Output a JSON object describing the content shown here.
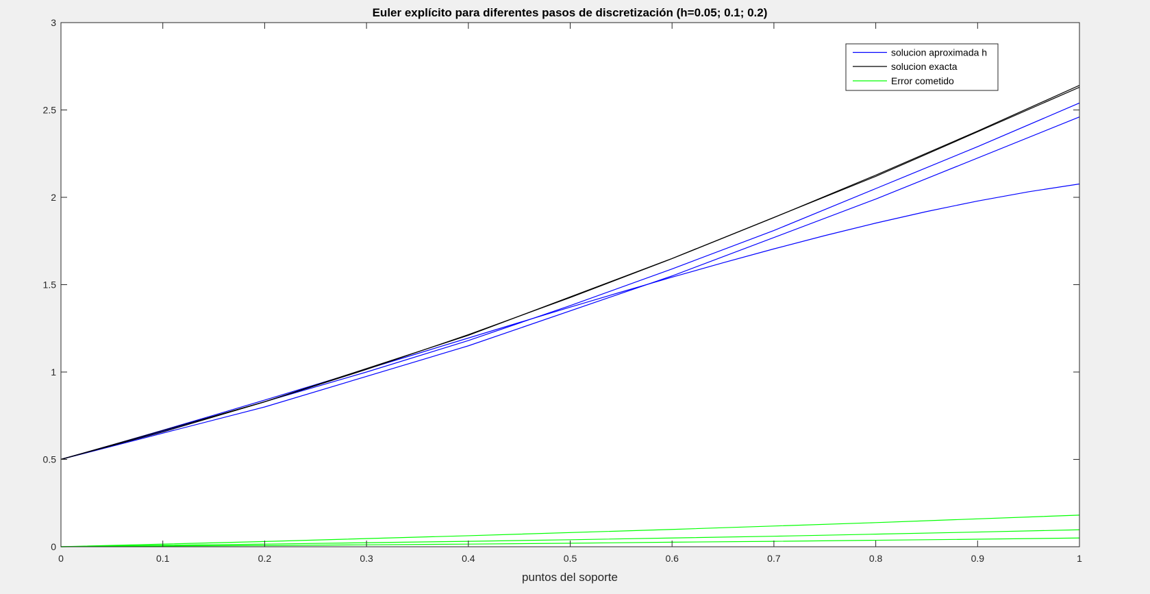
{
  "chart_data": {
    "type": "line",
    "title": "Euler explícito para diferentes pasos de discretización (h=0.05; 0.1; 0.2)",
    "xlabel": "puntos del soporte",
    "ylabel": "",
    "xlim": [
      0,
      1
    ],
    "ylim": [
      0,
      3
    ],
    "xticks": [
      "0",
      "0.1",
      "0.2",
      "0.3",
      "0.4",
      "0.5",
      "0.6",
      "0.7",
      "0.8",
      "0.9",
      "1"
    ],
    "yticks": [
      "0",
      "0.5",
      "1",
      "1.5",
      "2",
      "2.5",
      "3"
    ],
    "grid": false,
    "legend_position": "top-right",
    "legend": [
      {
        "label": "solucion aproximada h",
        "color": "#0000ff"
      },
      {
        "label": "solucion exacta",
        "color": "#000000"
      },
      {
        "label": "Error cometido",
        "color": "#00ff00"
      }
    ],
    "series": [
      {
        "group": "approx",
        "color": "#0000ff",
        "x": [
          0,
          0.05,
          0.1,
          0.15,
          0.2,
          0.25,
          0.3,
          0.35,
          0.4,
          0.45,
          0.5,
          0.55,
          0.6,
          0.65,
          0.7,
          0.75,
          0.8,
          0.85,
          0.9,
          0.95,
          1.0
        ],
        "y": [
          0.5,
          0.5825,
          0.6668,
          0.7526,
          0.8396,
          0.9276,
          1.0163,
          1.1054,
          1.1946,
          1.2833,
          1.3712,
          1.4579,
          1.5428,
          1.6253,
          1.7049,
          1.7809,
          1.8524,
          1.9187,
          1.9788,
          2.0317,
          2.0765
        ]
      },
      {
        "group": "approx",
        "color": "#0000ff",
        "x": [
          0,
          0.1,
          0.2,
          0.3,
          0.4,
          0.5,
          0.6,
          0.7,
          0.8,
          0.9,
          1.0
        ],
        "y": [
          0.5,
          0.66,
          0.83,
          1.0,
          1.18,
          1.38,
          1.59,
          1.81,
          2.05,
          2.29,
          2.54
        ]
      },
      {
        "group": "approx",
        "color": "#0000ff",
        "x": [
          0,
          0.2,
          0.4,
          0.6,
          0.8,
          1.0
        ],
        "y": [
          0.5,
          0.8,
          1.15,
          1.55,
          1.99,
          2.46
        ]
      },
      {
        "group": "exact",
        "color": "#000000",
        "x": [
          0,
          0.1,
          0.2,
          0.3,
          0.4,
          0.5,
          0.6,
          0.7,
          0.8,
          0.9,
          1.0
        ],
        "y": [
          0.5,
          0.657,
          0.829,
          1.015,
          1.214,
          1.426,
          1.649,
          1.884,
          2.127,
          2.379,
          2.641
        ]
      },
      {
        "group": "exact",
        "color": "#000000",
        "x": [
          0,
          0.2,
          0.4,
          0.6,
          0.8,
          1.0
        ],
        "y": [
          0.5,
          0.83,
          1.21,
          1.65,
          2.12,
          2.63
        ]
      },
      {
        "group": "error",
        "color": "#00ff00",
        "x": [
          0,
          0.1,
          0.2,
          0.3,
          0.4,
          0.5,
          0.6,
          0.7,
          0.8,
          0.9,
          1.0
        ],
        "y": [
          0,
          0.004,
          0.007,
          0.011,
          0.015,
          0.02,
          0.026,
          0.031,
          0.037,
          0.043,
          0.05
        ]
      },
      {
        "group": "error",
        "color": "#00ff00",
        "x": [
          0,
          0.1,
          0.2,
          0.3,
          0.4,
          0.5,
          0.6,
          0.7,
          0.8,
          0.9,
          1.0
        ],
        "y": [
          0,
          0.008,
          0.015,
          0.023,
          0.031,
          0.04,
          0.05,
          0.06,
          0.072,
          0.084,
          0.097
        ]
      },
      {
        "group": "error",
        "color": "#00ff00",
        "x": [
          0,
          0.2,
          0.4,
          0.6,
          0.8,
          1.0
        ],
        "y": [
          0,
          0.03,
          0.063,
          0.099,
          0.138,
          0.181
        ]
      }
    ]
  }
}
